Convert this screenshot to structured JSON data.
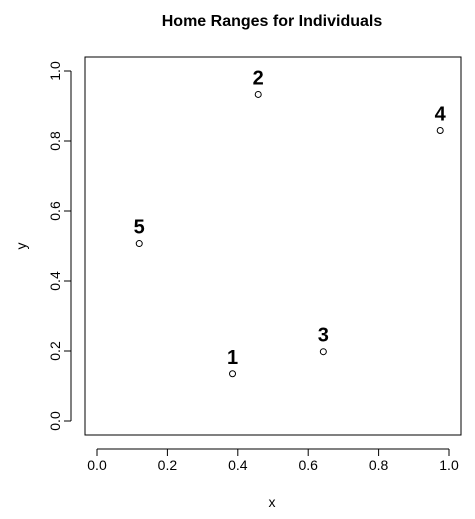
{
  "chart_data": {
    "type": "scatter",
    "title": "Home Ranges for Individuals",
    "xlabel": "x",
    "ylabel": "y",
    "xlim": [
      0,
      1
    ],
    "ylim": [
      0,
      1
    ],
    "xticks": [
      0.0,
      0.2,
      0.4,
      0.6,
      0.8,
      1.0
    ],
    "yticks": [
      0.0,
      0.2,
      0.4,
      0.6,
      0.8,
      1.0
    ],
    "xtick_labels": [
      "0.0",
      "0.2",
      "0.4",
      "0.6",
      "0.8",
      "1.0"
    ],
    "ytick_labels": [
      "0.0",
      "0.2",
      "0.4",
      "0.6",
      "0.8",
      "1.0"
    ],
    "grid": false,
    "points": [
      {
        "label": "1",
        "x": 0.385,
        "y": 0.135
      },
      {
        "label": "2",
        "x": 0.458,
        "y": 0.933
      },
      {
        "label": "3",
        "x": 0.643,
        "y": 0.198
      },
      {
        "label": "4",
        "x": 0.975,
        "y": 0.83
      },
      {
        "label": "5",
        "x": 0.12,
        "y": 0.507
      }
    ]
  }
}
